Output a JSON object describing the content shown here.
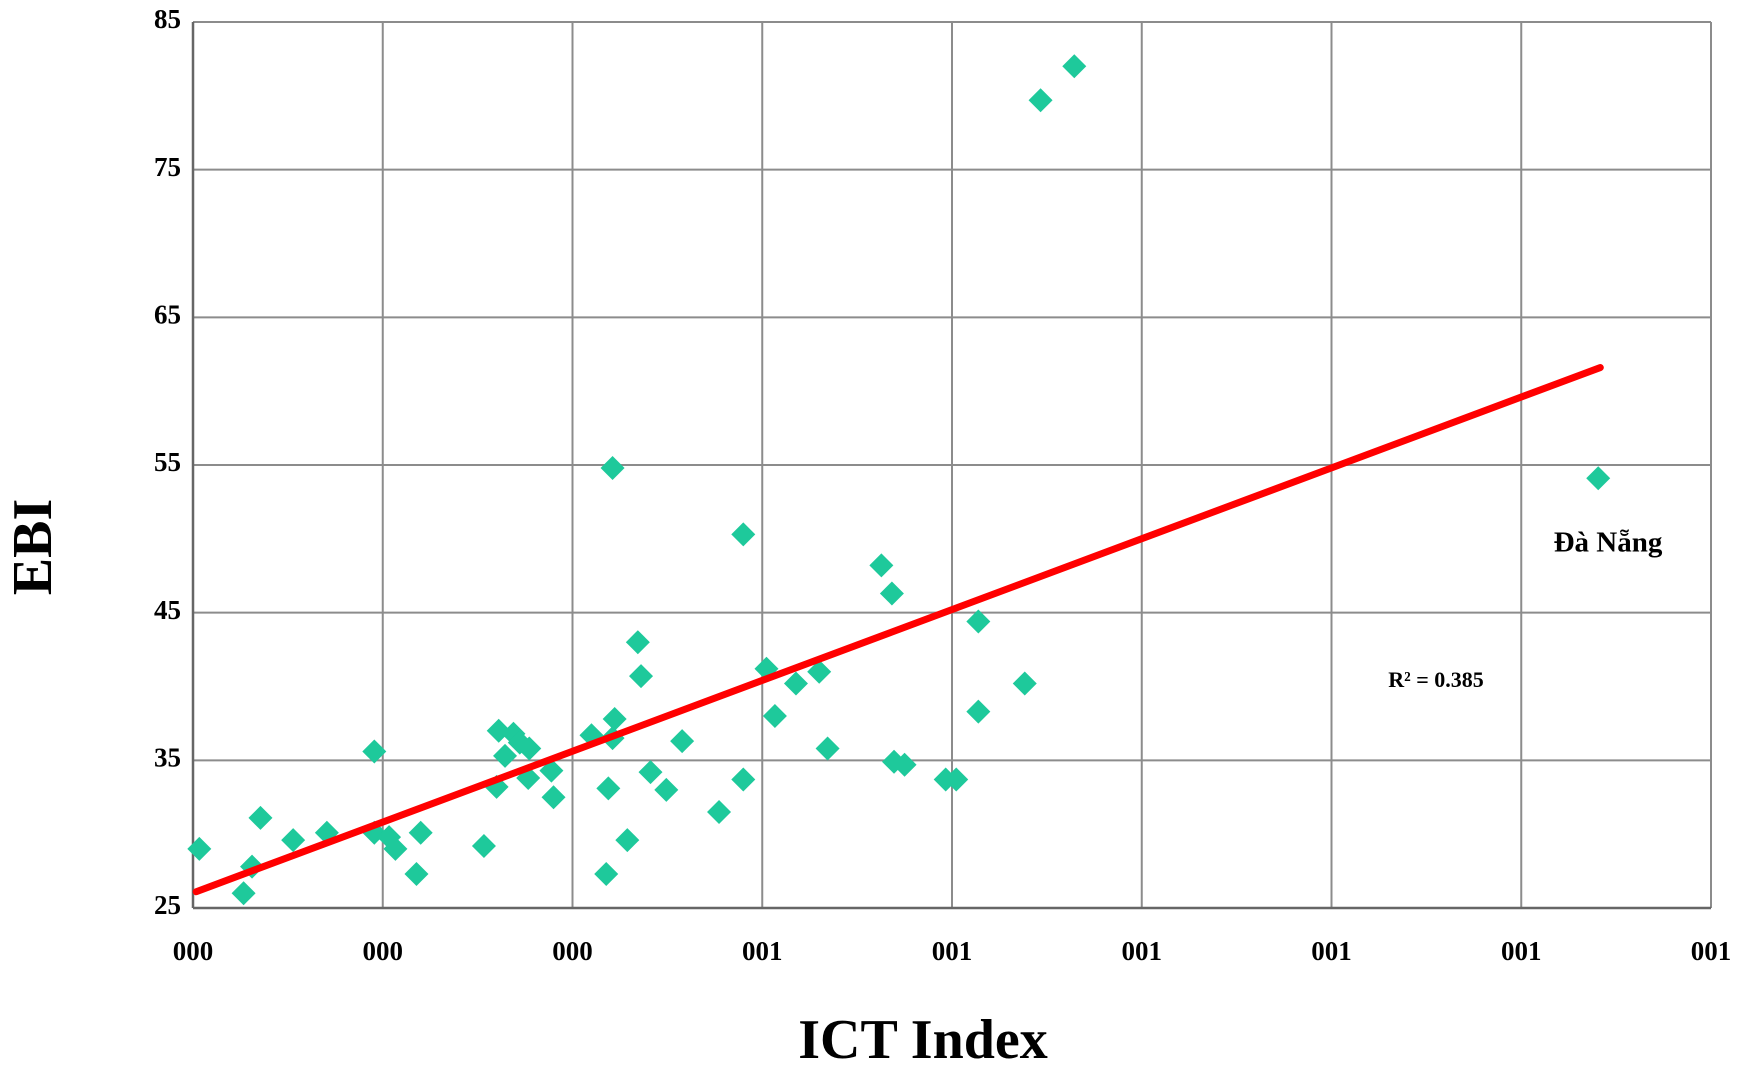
{
  "chart_data": {
    "type": "scatter",
    "x_label": "ICT Index",
    "y_label": "EBI",
    "x": [
      0.006,
      0.048,
      0.056,
      0.064,
      0.095,
      0.127,
      0.172,
      0.172,
      0.186,
      0.192,
      0.212,
      0.216,
      0.276,
      0.288,
      0.29,
      0.296,
      0.304,
      0.31,
      0.318,
      0.319,
      0.34,
      0.342,
      0.378,
      0.392,
      0.394,
      0.398,
      0.398,
      0.4,
      0.412,
      0.422,
      0.425,
      0.434,
      0.449,
      0.464,
      0.499,
      0.522,
      0.522,
      0.544,
      0.552,
      0.572,
      0.594,
      0.602,
      0.653,
      0.663,
      0.665,
      0.675,
      0.714,
      0.724,
      0.745,
      0.745,
      0.789,
      0.804,
      0.836,
      1.333
    ],
    "values": [
      29.0,
      26.0,
      27.8,
      31.1,
      29.6,
      30.1,
      35.6,
      30.1,
      29.8,
      29.0,
      27.3,
      30.1,
      29.2,
      33.2,
      37.0,
      35.3,
      36.8,
      36.2,
      33.8,
      35.8,
      34.3,
      32.5,
      36.7,
      27.3,
      33.1,
      36.5,
      54.8,
      37.8,
      29.6,
      43.0,
      40.7,
      34.2,
      33.0,
      36.3,
      31.5,
      33.7,
      50.3,
      41.2,
      38.0,
      40.2,
      41.0,
      35.8,
      48.2,
      46.3,
      34.9,
      34.7,
      33.7,
      33.7,
      44.4,
      38.3,
      40.2,
      79.7,
      82.0,
      54.1
    ],
    "color": "#1ec99b",
    "trendline": {
      "x": [
        0.003,
        1.335
      ],
      "values": [
        26.1,
        61.6
      ],
      "color": "#ff0000"
    },
    "annotations": [
      "Đà Nẵng",
      "R² = 0.385"
    ],
    "xlim": [
      0,
      1.44
    ],
    "xticks": [
      {
        "value": 0,
        "label": "000"
      },
      {
        "value": 0.18,
        "label": "000"
      },
      {
        "value": 0.36,
        "label": "000"
      },
      {
        "value": 0.54,
        "label": "001"
      },
      {
        "value": 0.72,
        "label": "001"
      },
      {
        "value": 0.9,
        "label": "001"
      },
      {
        "value": 1.08,
        "label": "001"
      },
      {
        "value": 1.26,
        "label": "001"
      },
      {
        "value": 1.44,
        "label": "001"
      }
    ],
    "ylim": [
      25,
      85
    ],
    "yticks": [
      25,
      35,
      45,
      55,
      65,
      75,
      85
    ],
    "grid": true
  }
}
